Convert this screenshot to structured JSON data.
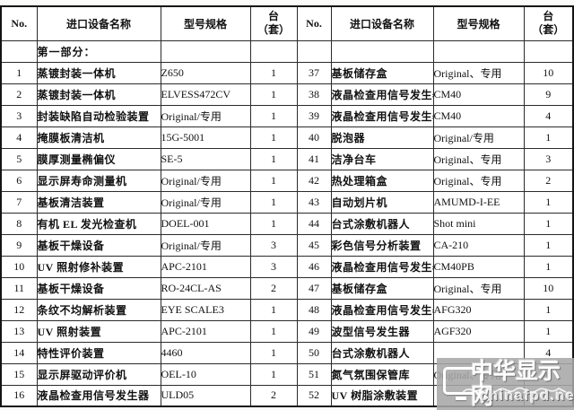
{
  "table": {
    "header": {
      "no": "No.",
      "name": "进口设备名称",
      "model": "型号规格",
      "unit_top": "台",
      "unit_bottom": "（套）"
    },
    "section_label": "第一部分：",
    "rows": [
      {
        "l_no": "1",
        "l_name": "蒸镀封装一体机",
        "l_model": "Z650",
        "l_qty": "1",
        "r_no": "37",
        "r_name": "基板储存盒",
        "r_model": "Original、专用",
        "r_qty": "10"
      },
      {
        "l_no": "2",
        "l_name": "蒸镀封装一体机",
        "l_model": "ELVESS472CV",
        "l_qty": "1",
        "r_no": "38",
        "r_name": "液晶检查用信号发生器",
        "r_model": "CM40",
        "r_qty": "9"
      },
      {
        "l_no": "3",
        "l_name": "封装缺陷自动检验装置",
        "l_model": "Original/专用",
        "l_qty": "1",
        "r_no": "39",
        "r_name": "液晶检查用信号发生器",
        "r_model": "CM40",
        "r_qty": "4"
      },
      {
        "l_no": "4",
        "l_name": "掩膜板清洁机",
        "l_model": "15G-5001",
        "l_qty": "1",
        "r_no": "40",
        "r_name": "脱泡器",
        "r_model": "Original/专用",
        "r_qty": "1"
      },
      {
        "l_no": "5",
        "l_name": "膜厚测量椭偏仪",
        "l_model": "SE-5",
        "l_qty": "1",
        "r_no": "41",
        "r_name": "洁净台车",
        "r_model": "Original、专用",
        "r_qty": "3"
      },
      {
        "l_no": "6",
        "l_name": "显示屏寿命测量机",
        "l_model": "Original/专用",
        "l_qty": "1",
        "r_no": "42",
        "r_name": "热处理箱盒",
        "r_model": "Original、专用",
        "r_qty": "2"
      },
      {
        "l_no": "7",
        "l_name": "基板清洁装置",
        "l_model": "Original/专用",
        "l_qty": "1",
        "r_no": "43",
        "r_name": "自动划片机",
        "r_model": "AMUMD-I-EE",
        "r_qty": "1"
      },
      {
        "l_no": "8",
        "l_name": "有机 EL 发光检查机",
        "l_model": "DOEL-001",
        "l_qty": "1",
        "r_no": "44",
        "r_name": "台式涂敷机器人",
        "r_model": "Shot mini",
        "r_qty": "1"
      },
      {
        "l_no": "9",
        "l_name": "基板干燥设备",
        "l_model": "Original/专用",
        "l_qty": "3",
        "r_no": "45",
        "r_name": "彩色信号分析装置",
        "r_model": "CA-210",
        "r_qty": "1"
      },
      {
        "l_no": "10",
        "l_name": "UV 照射修补装置",
        "l_model": "APC-2101",
        "l_qty": "3",
        "r_no": "46",
        "r_name": "液晶检查用信号发生器",
        "r_model": "CM40PB",
        "r_qty": "1"
      },
      {
        "l_no": "11",
        "l_name": "基板干燥设备",
        "l_model": "RO-24CL-AS",
        "l_qty": "2",
        "r_no": "47",
        "r_name": "基板储存盒",
        "r_model": "Original、专用",
        "r_qty": "10"
      },
      {
        "l_no": "12",
        "l_name": "条纹不均解析装置",
        "l_model": "EYE SCALE3",
        "l_qty": "1",
        "r_no": "48",
        "r_name": "液晶检查用信号发生器",
        "r_model": "AFG320",
        "r_qty": "1"
      },
      {
        "l_no": "13",
        "l_name": "UV 照射装置",
        "l_model": "APC-2101",
        "l_qty": "1",
        "r_no": "49",
        "r_name": "波型信号发生器",
        "r_model": "AGF320",
        "r_qty": "1"
      },
      {
        "l_no": "14",
        "l_name": "特性评价装置",
        "l_model": "4460",
        "l_qty": "1",
        "r_no": "50",
        "r_name": "台式涂敷机器人",
        "r_model": "",
        "r_qty": "4"
      },
      {
        "l_no": "15",
        "l_name": "显示屏驱动评价机",
        "l_model": "OEL-10",
        "l_qty": "1",
        "r_no": "51",
        "r_name": "氮气氛围保管库",
        "r_model": "Original、专用",
        "r_qty": "6"
      },
      {
        "l_no": "16",
        "l_name": "液晶检查用信号发生器",
        "l_model": "ULD05",
        "l_qty": "2",
        "r_no": "52",
        "r_name": "UV 树脂涂敷装置",
        "r_model": "",
        "r_qty": "2"
      }
    ]
  },
  "watermark": {
    "site_name": "中华显示网",
    "site_url": "chinafpd.net"
  }
}
